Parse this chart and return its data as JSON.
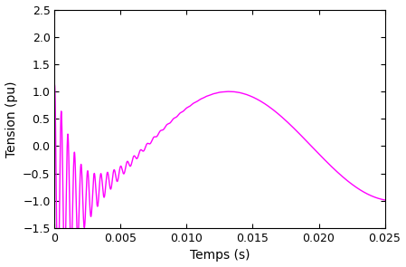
{
  "title": "",
  "xlabel": "Temps (s)",
  "ylabel": "Tension (pu)",
  "xlim": [
    0,
    0.025
  ],
  "ylim": [
    -1.5,
    2.5
  ],
  "xticks": [
    0,
    0.005,
    0.01,
    0.015,
    0.02,
    0.025
  ],
  "yticks": [
    -1.5,
    -1.0,
    -0.5,
    0,
    0.5,
    1.0,
    1.5,
    2.0,
    2.5
  ],
  "line_color": "#FF00FF",
  "line_width": 1.0,
  "background_color": "#ffffff",
  "figsize": [
    4.49,
    2.95
  ],
  "dpi": 100,
  "f_fast": 2000.0,
  "decay_fast": 600.0,
  "fast_amp": 2.1,
  "f_slow": 40.0,
  "slow_amp": 1.0,
  "phi_slow_deg": -100.0,
  "phi_fast_deg": 90.0,
  "f_mid": 300.0,
  "decay_mid": 800.0,
  "mid_amp": 0.15
}
